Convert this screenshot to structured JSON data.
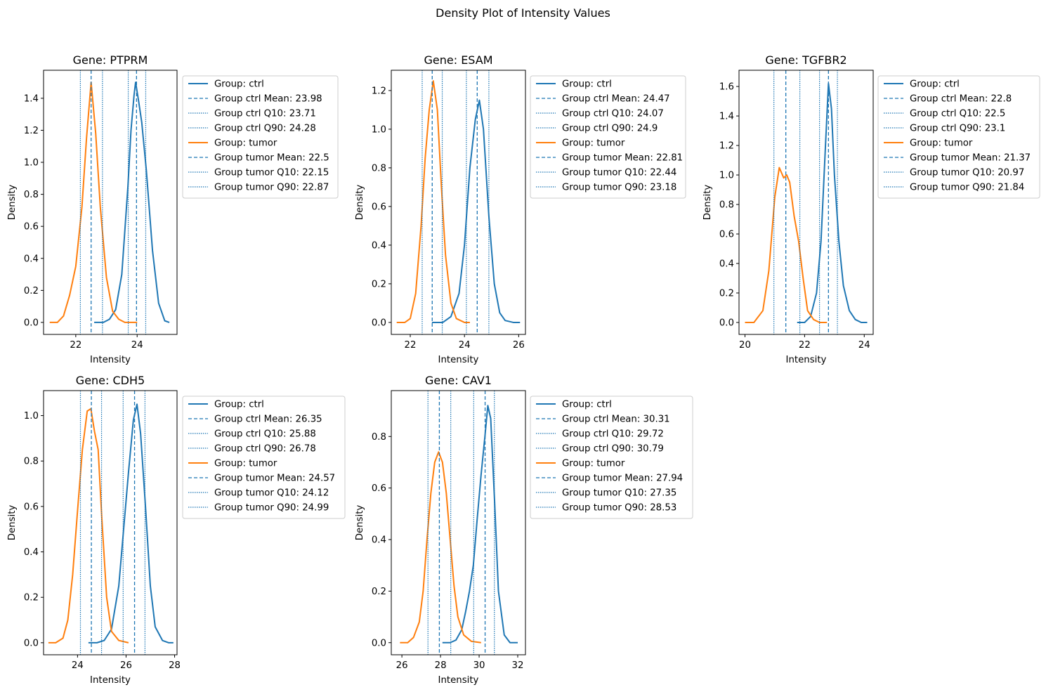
{
  "figure": {
    "title": "Density Plot of Intensity Values"
  },
  "colors": {
    "ctrl": "#1f77b4",
    "tumor": "#ff7f0e",
    "axes": "#000000",
    "legend_border": "#cccccc"
  },
  "chart_data": [
    {
      "type": "line",
      "title": "Gene: PTPRM",
      "xlabel": "Intensity",
      "ylabel": "Density",
      "xlim": [
        20.95,
        25.3
      ],
      "ylim": [
        -0.075,
        1.575
      ],
      "xticks": [
        22,
        24
      ],
      "xtick_labels": [
        "22",
        "24"
      ],
      "yticks": [
        0.0,
        0.2,
        0.4,
        0.6,
        0.8,
        1.0,
        1.2,
        1.4
      ],
      "ytick_labels": [
        "0.0",
        "0.2",
        "0.4",
        "0.6",
        "0.8",
        "1.0",
        "1.2",
        "1.4"
      ],
      "legend_position": "outside-right",
      "legend": [
        "Group: ctrl",
        "Group ctrl Mean: 23.98",
        "Group ctrl Q10: 23.71",
        "Group ctrl Q90: 24.28",
        "Group: tumor",
        "Group tumor Mean: 22.5",
        "Group tumor Q10: 22.15",
        "Group tumor Q90: 22.87"
      ],
      "stats": {
        "ctrl": {
          "mean": 23.98,
          "q10": 23.71,
          "q90": 24.28
        },
        "tumor": {
          "mean": 22.5,
          "q10": 22.15,
          "q90": 22.87
        }
      },
      "series": [
        {
          "group": "ctrl",
          "x": [
            22.6,
            22.9,
            23.1,
            23.3,
            23.5,
            23.7,
            23.8,
            23.9,
            23.95,
            24.05,
            24.15,
            24.3,
            24.5,
            24.7,
            24.9,
            25.05
          ],
          "y": [
            0.0,
            0.0,
            0.02,
            0.08,
            0.3,
            0.85,
            1.2,
            1.42,
            1.5,
            1.38,
            1.25,
            0.95,
            0.45,
            0.12,
            0.01,
            0.0
          ]
        },
        {
          "group": "tumor",
          "x": [
            21.15,
            21.4,
            21.6,
            21.8,
            22.0,
            22.2,
            22.35,
            22.5,
            22.65,
            22.8,
            23.0,
            23.2,
            23.4,
            23.6,
            23.8,
            24.0
          ],
          "y": [
            0.0,
            0.0,
            0.04,
            0.17,
            0.35,
            0.72,
            1.15,
            1.5,
            1.18,
            0.72,
            0.28,
            0.07,
            0.02,
            0.0,
            0.0,
            0.0
          ]
        }
      ]
    },
    {
      "type": "line",
      "title": "Gene: ESAM",
      "xlabel": "Intensity",
      "ylabel": "Density",
      "xlim": [
        21.3,
        26.25
      ],
      "ylim": [
        -0.062,
        1.305
      ],
      "xticks": [
        22,
        24,
        26
      ],
      "xtick_labels": [
        "22",
        "24",
        "26"
      ],
      "yticks": [
        0.0,
        0.2,
        0.4,
        0.6,
        0.8,
        1.0,
        1.2
      ],
      "ytick_labels": [
        "0.0",
        "0.2",
        "0.4",
        "0.6",
        "0.8",
        "1.0",
        "1.2"
      ],
      "legend_position": "outside-right",
      "legend": [
        "Group: ctrl",
        "Group ctrl Mean: 24.47",
        "Group ctrl Q10: 24.07",
        "Group ctrl Q90: 24.9",
        "Group: tumor",
        "Group tumor Mean: 22.81",
        "Group tumor Q10: 22.44",
        "Group tumor Q90: 23.18"
      ],
      "stats": {
        "ctrl": {
          "mean": 24.47,
          "q10": 24.07,
          "q90": 24.9
        },
        "tumor": {
          "mean": 22.81,
          "q10": 22.44,
          "q90": 23.18
        }
      },
      "series": [
        {
          "group": "ctrl",
          "x": [
            22.8,
            23.2,
            23.5,
            23.8,
            24.0,
            24.2,
            24.4,
            24.55,
            24.7,
            24.9,
            25.1,
            25.3,
            25.5,
            25.8,
            26.05
          ],
          "y": [
            0.0,
            0.0,
            0.03,
            0.15,
            0.4,
            0.8,
            1.05,
            1.15,
            1.0,
            0.55,
            0.2,
            0.05,
            0.01,
            0.0,
            0.0
          ]
        },
        {
          "group": "tumor",
          "x": [
            21.5,
            21.8,
            22.0,
            22.2,
            22.4,
            22.55,
            22.7,
            22.85,
            23.0,
            23.15,
            23.3,
            23.5,
            23.7,
            24.0,
            24.2
          ],
          "y": [
            0.0,
            0.0,
            0.02,
            0.15,
            0.5,
            0.85,
            1.1,
            1.25,
            1.1,
            0.7,
            0.35,
            0.1,
            0.02,
            0.0,
            0.0
          ]
        }
      ]
    },
    {
      "type": "line",
      "title": "Gene: TGFBR2",
      "xlabel": "Intensity",
      "ylabel": "Density",
      "xlim": [
        19.8,
        24.3
      ],
      "ylim": [
        -0.081,
        1.71
      ],
      "xticks": [
        20,
        22,
        24
      ],
      "xtick_labels": [
        "20",
        "22",
        "24"
      ],
      "yticks": [
        0.0,
        0.2,
        0.4,
        0.6,
        0.8,
        1.0,
        1.2,
        1.4,
        1.6
      ],
      "ytick_labels": [
        "0.0",
        "0.2",
        "0.4",
        "0.6",
        "0.8",
        "1.0",
        "1.2",
        "1.4",
        "1.6"
      ],
      "legend_position": "outside-right",
      "legend": [
        "Group: ctrl",
        "Group ctrl Mean: 22.8",
        "Group ctrl Q10: 22.5",
        "Group ctrl Q90: 23.1",
        "Group: tumor",
        "Group tumor Mean: 21.37",
        "Group tumor Q10: 20.97",
        "Group tumor Q90: 21.84"
      ],
      "stats": {
        "ctrl": {
          "mean": 22.8,
          "q10": 22.5,
          "q90": 23.1
        },
        "tumor": {
          "mean": 21.37,
          "q10": 20.97,
          "q90": 21.84
        }
      },
      "series": [
        {
          "group": "ctrl",
          "x": [
            21.75,
            22.0,
            22.2,
            22.4,
            22.55,
            22.7,
            22.8,
            22.9,
            23.0,
            23.15,
            23.3,
            23.5,
            23.7,
            23.9,
            24.1
          ],
          "y": [
            0.0,
            0.0,
            0.04,
            0.2,
            0.55,
            1.2,
            1.62,
            1.45,
            1.0,
            0.55,
            0.25,
            0.08,
            0.02,
            0.0,
            0.0
          ]
        },
        {
          "group": "tumor",
          "x": [
            20.0,
            20.3,
            20.6,
            20.8,
            21.0,
            21.15,
            21.3,
            21.4,
            21.5,
            21.65,
            21.8,
            21.95,
            22.1,
            22.3,
            22.5,
            22.75
          ],
          "y": [
            0.0,
            0.0,
            0.08,
            0.35,
            0.85,
            1.05,
            0.98,
            1.0,
            0.95,
            0.72,
            0.55,
            0.3,
            0.08,
            0.02,
            0.0,
            0.0
          ]
        }
      ]
    },
    {
      "type": "line",
      "title": "Gene: CDH5",
      "xlabel": "Intensity",
      "ylabel": "Density",
      "xlim": [
        22.6,
        28.1
      ],
      "ylim": [
        -0.053,
        1.11
      ],
      "xticks": [
        24,
        26,
        28
      ],
      "xtick_labels": [
        "24",
        "26",
        "28"
      ],
      "yticks": [
        0.0,
        0.2,
        0.4,
        0.6,
        0.8,
        1.0
      ],
      "ytick_labels": [
        "0.0",
        "0.2",
        "0.4",
        "0.6",
        "0.8",
        "1.0"
      ],
      "legend_position": "outside-right",
      "legend": [
        "Group: ctrl",
        "Group ctrl Mean: 26.35",
        "Group ctrl Q10: 25.88",
        "Group ctrl Q90: 26.78",
        "Group: tumor",
        "Group tumor Mean: 24.57",
        "Group tumor Q10: 24.12",
        "Group tumor Q90: 24.99"
      ],
      "stats": {
        "ctrl": {
          "mean": 26.35,
          "q10": 25.88,
          "q90": 26.78
        },
        "tumor": {
          "mean": 24.57,
          "q10": 24.12,
          "q90": 24.99
        }
      },
      "series": [
        {
          "group": "ctrl",
          "x": [
            24.45,
            24.8,
            25.1,
            25.4,
            25.7,
            25.9,
            26.1,
            26.3,
            26.45,
            26.6,
            26.8,
            27.0,
            27.2,
            27.5,
            27.75,
            27.95
          ],
          "y": [
            0.0,
            0.0,
            0.01,
            0.06,
            0.25,
            0.5,
            0.75,
            0.98,
            1.05,
            0.92,
            0.6,
            0.25,
            0.07,
            0.01,
            0.0,
            0.0
          ]
        },
        {
          "group": "tumor",
          "x": [
            22.8,
            23.1,
            23.4,
            23.6,
            23.8,
            24.0,
            24.2,
            24.4,
            24.55,
            24.7,
            24.85,
            25.0,
            25.2,
            25.4,
            25.7,
            26.1
          ],
          "y": [
            0.0,
            0.0,
            0.02,
            0.1,
            0.3,
            0.58,
            0.85,
            1.02,
            1.03,
            0.93,
            0.85,
            0.55,
            0.2,
            0.05,
            0.01,
            0.0
          ]
        }
      ]
    },
    {
      "type": "line",
      "title": "Gene: CAV1",
      "xlabel": "Intensity",
      "ylabel": "Density",
      "xlim": [
        25.45,
        32.4
      ],
      "ylim": [
        -0.047,
        0.978
      ],
      "xticks": [
        26,
        28,
        30,
        32
      ],
      "xtick_labels": [
        "26",
        "28",
        "30",
        "32"
      ],
      "yticks": [
        0.0,
        0.2,
        0.4,
        0.6,
        0.8
      ],
      "ytick_labels": [
        "0.0",
        "0.2",
        "0.4",
        "0.6",
        "0.8"
      ],
      "legend_position": "outside-right",
      "legend": [
        "Group: ctrl",
        "Group ctrl Mean: 30.31",
        "Group ctrl Q10: 29.72",
        "Group ctrl Q90: 30.79",
        "Group: tumor",
        "Group tumor Mean: 27.94",
        "Group tumor Q10: 27.35",
        "Group tumor Q90: 28.53"
      ],
      "stats": {
        "ctrl": {
          "mean": 30.31,
          "q10": 29.72,
          "q90": 30.79
        },
        "tumor": {
          "mean": 27.94,
          "q10": 27.35,
          "q90": 28.53
        }
      },
      "series": [
        {
          "group": "ctrl",
          "x": [
            28.1,
            28.5,
            28.8,
            29.1,
            29.3,
            29.5,
            29.7,
            29.9,
            30.1,
            30.3,
            30.45,
            30.6,
            30.8,
            31.0,
            31.3,
            31.6,
            32.0
          ],
          "y": [
            0.0,
            0.0,
            0.01,
            0.05,
            0.12,
            0.2,
            0.3,
            0.48,
            0.65,
            0.8,
            0.92,
            0.87,
            0.55,
            0.2,
            0.03,
            0.0,
            0.0
          ]
        },
        {
          "group": "tumor",
          "x": [
            25.9,
            26.3,
            26.6,
            26.9,
            27.1,
            27.3,
            27.5,
            27.7,
            27.9,
            28.1,
            28.3,
            28.5,
            28.7,
            28.9,
            29.2,
            29.6,
            30.1
          ],
          "y": [
            0.0,
            0.0,
            0.02,
            0.08,
            0.2,
            0.4,
            0.58,
            0.7,
            0.74,
            0.7,
            0.58,
            0.4,
            0.22,
            0.1,
            0.03,
            0.005,
            0.0
          ]
        }
      ]
    }
  ]
}
